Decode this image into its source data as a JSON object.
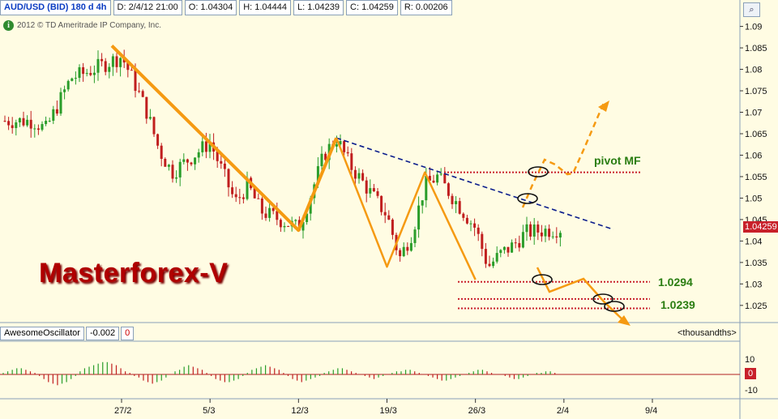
{
  "header": {
    "symbol": "AUD/USD (BID) 180 d 4h",
    "date": "D: 2/4/12 21:00",
    "open": "O: 1.04304",
    "high": "H: 1.04444",
    "low": "L: 1.04239",
    "close": "C: 1.04259",
    "range": "R: 0.00206"
  },
  "copyright": "2012 © TD Ameritrade IP Company, Inc.",
  "info_icon": "i",
  "zoom_icon": "magnifier-icon",
  "brand": "Masterforex-V",
  "annotations": {
    "pivot": "pivot MF",
    "support1": "1.0294",
    "support2": "1.0239"
  },
  "price_badge": "1.04259",
  "indicator": {
    "name": "AwesomeOscillator",
    "value": "-0.002",
    "zero": "0",
    "units": "<thousandths>",
    "zero_badge": "0"
  },
  "colors": {
    "background": "#fffce3",
    "candle_up": "#2a9d2a",
    "candle_down": "#c01e1e",
    "pattern": "#f59a12",
    "trendline": "#0b1d8c",
    "levels": "#c8202a",
    "annotation": "#2a7d12"
  },
  "chart_data": {
    "type": "line",
    "title": "AUD/USD (BID) 180 d 4h",
    "y_axis": {
      "ticks": [
        "1.09",
        "1.085",
        "1.08",
        "1.075",
        "1.07",
        "1.065",
        "1.06",
        "1.055",
        "1.05",
        "1.045",
        "1.04",
        "1.035",
        "1.03",
        "1.025"
      ],
      "range": [
        1.021,
        1.092
      ]
    },
    "x_axis": {
      "ticks": [
        "27/2",
        "5/3",
        "12/3",
        "19/3",
        "26/3",
        "2/4",
        "9/4"
      ]
    },
    "series": [
      {
        "name": "close",
        "x": [
          "20/2",
          "21/2",
          "22/2",
          "23/2",
          "24/2",
          "27/2",
          "28/2",
          "29/2",
          "1/3",
          "2/3",
          "5/3",
          "6/3",
          "7/3",
          "8/3",
          "9/3",
          "12/3",
          "13/3",
          "14/3",
          "15/3",
          "16/3",
          "19/3",
          "20/3",
          "21/3",
          "22/3",
          "23/3",
          "26/3",
          "27/3",
          "28/3",
          "29/3",
          "30/3",
          "2/4"
        ],
        "values": [
          1.068,
          1.066,
          1.072,
          1.078,
          1.079,
          1.083,
          1.077,
          1.07,
          1.061,
          1.056,
          1.063,
          1.056,
          1.049,
          1.053,
          1.047,
          1.043,
          1.051,
          1.06,
          1.064,
          1.058,
          1.046,
          1.036,
          1.042,
          1.053,
          1.055,
          1.043,
          1.034,
          1.037,
          1.039,
          1.042,
          1.043
        ]
      }
    ],
    "pattern_points": [
      [
        "27/2",
        1.0855
      ],
      [
        "12/3",
        1.0425
      ],
      [
        "15/3",
        1.064
      ],
      [
        "19/3",
        1.034
      ],
      [
        "22/3",
        1.056
      ],
      [
        "26/3",
        1.031
      ]
    ],
    "trendline": [
      [
        "15/3",
        1.064
      ],
      [
        "4/4",
        1.0425
      ]
    ],
    "levels": [
      1.056,
      1.0305,
      1.0265,
      1.0243
    ],
    "oscillator": {
      "name": "AwesomeOscillator",
      "value": -0.002,
      "ticks": [
        "10",
        "0",
        "-10"
      ],
      "units": "thousandths",
      "values": [
        1,
        2,
        3,
        4,
        4,
        3,
        2,
        1,
        -1,
        -3,
        -5,
        -6,
        -7,
        -6,
        -5,
        -3,
        -1,
        2,
        4,
        5,
        6,
        7,
        8,
        8,
        7,
        6,
        4,
        2,
        1,
        -1,
        -2,
        -4,
        -5,
        -6,
        -5,
        -4,
        -2,
        0,
        2,
        3,
        5,
        6,
        5,
        4,
        3,
        1,
        -1,
        -3,
        -4,
        -5,
        -5,
        -4,
        -3,
        -1,
        1,
        3,
        4,
        5,
        6,
        5,
        4,
        3,
        1,
        -1,
        -3,
        -4,
        -5,
        -4,
        -3,
        -2,
        -1,
        1,
        2,
        3,
        4,
        4,
        3,
        2,
        1,
        0,
        -1,
        -2,
        -3,
        -2,
        -1,
        0,
        1,
        2,
        2,
        3,
        3,
        2,
        1,
        0,
        -1,
        -2,
        -3,
        -4,
        -4,
        -3,
        -2,
        -1,
        0,
        1,
        2,
        3,
        3,
        2,
        1,
        0,
        0,
        -1,
        -2,
        -3,
        -3,
        -2,
        -1,
        0,
        1,
        1,
        2,
        2,
        1,
        0
      ]
    }
  }
}
